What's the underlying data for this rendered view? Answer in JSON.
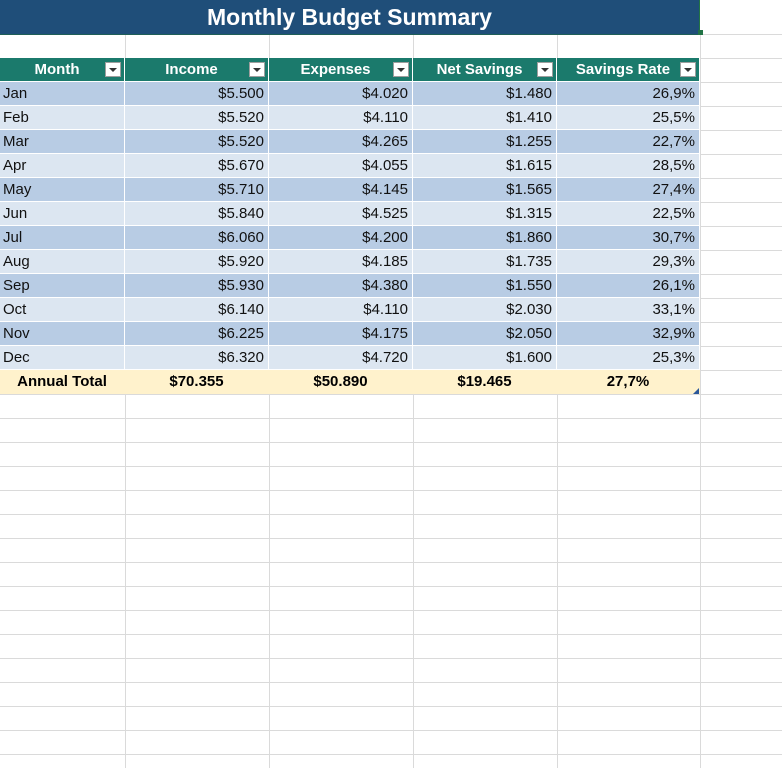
{
  "title": "Monthly Budget Summary",
  "table": {
    "headers": [
      "Month",
      "Income",
      "Expenses",
      "Net Savings",
      "Savings Rate"
    ],
    "rows": [
      {
        "month": "Jan",
        "income": "$5.500",
        "expenses": "$4.020",
        "net": "$1.480",
        "rate": "26,9%"
      },
      {
        "month": "Feb",
        "income": "$5.520",
        "expenses": "$4.110",
        "net": "$1.410",
        "rate": "25,5%"
      },
      {
        "month": "Mar",
        "income": "$5.520",
        "expenses": "$4.265",
        "net": "$1.255",
        "rate": "22,7%"
      },
      {
        "month": "Apr",
        "income": "$5.670",
        "expenses": "$4.055",
        "net": "$1.615",
        "rate": "28,5%"
      },
      {
        "month": "May",
        "income": "$5.710",
        "expenses": "$4.145",
        "net": "$1.565",
        "rate": "27,4%"
      },
      {
        "month": "Jun",
        "income": "$5.840",
        "expenses": "$4.525",
        "net": "$1.315",
        "rate": "22,5%"
      },
      {
        "month": "Jul",
        "income": "$6.060",
        "expenses": "$4.200",
        "net": "$1.860",
        "rate": "30,7%"
      },
      {
        "month": "Aug",
        "income": "$5.920",
        "expenses": "$4.185",
        "net": "$1.735",
        "rate": "29,3%"
      },
      {
        "month": "Sep",
        "income": "$5.930",
        "expenses": "$4.380",
        "net": "$1.550",
        "rate": "26,1%"
      },
      {
        "month": "Oct",
        "income": "$6.140",
        "expenses": "$4.110",
        "net": "$2.030",
        "rate": "33,1%"
      },
      {
        "month": "Nov",
        "income": "$6.225",
        "expenses": "$4.175",
        "net": "$2.050",
        "rate": "32,9%"
      },
      {
        "month": "Dec",
        "income": "$6.320",
        "expenses": "$4.720",
        "net": "$1.600",
        "rate": "25,3%"
      }
    ],
    "total": {
      "label": "Annual Total",
      "income": "$70.355",
      "expenses": "$50.890",
      "net": "$19.465",
      "rate": "27,7%"
    }
  },
  "colors": {
    "title_bg": "#1f4e79",
    "header_bg": "#1b7a6c",
    "band_dark": "#b8cce4",
    "band_light": "#dce6f1",
    "total_bg": "#fff2cc"
  },
  "icons": {
    "filter_dropdown": "chevron-down-icon"
  }
}
